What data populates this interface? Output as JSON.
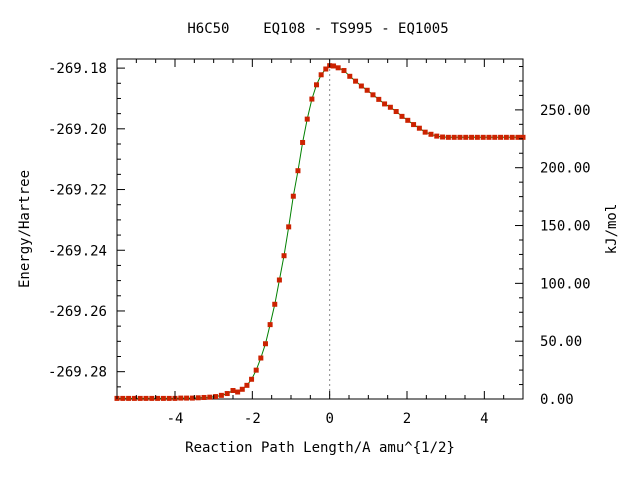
{
  "chart_data": {
    "type": "line",
    "title": "H6C50    EQ108 - TS995 - EQ1005",
    "xlabel": "Reaction Path Length/A amu^{1/2}",
    "ylabel": "Energy/Hartree",
    "y2label": "kJ/mol",
    "xlim": [
      -5.5,
      5.0
    ],
    "ylim": [
      -269.289,
      -269.177
    ],
    "y2lim": [
      0,
      294
    ],
    "x_ticks": [
      -4,
      -2,
      0,
      2,
      4
    ],
    "x_tick_labels": [
      "-4",
      "-2",
      "0",
      "2",
      "4"
    ],
    "y_ticks": [
      -269.18,
      -269.2,
      -269.22,
      -269.24,
      -269.26,
      -269.28
    ],
    "y_tick_labels": [
      "-269.18",
      "-269.20",
      "-269.22",
      "-269.24",
      "-269.26",
      "-269.28"
    ],
    "y2_ticks": [
      0,
      50,
      100,
      150,
      200,
      250
    ],
    "y2_tick_labels": [
      "0.00",
      "50.00",
      "100.00",
      "150.00",
      "200.00",
      "250.00"
    ],
    "ts_marker_x": 0,
    "grid": false,
    "line_color": "#008000",
    "marker_color": "#cc2200",
    "ts_line_color": "#888888",
    "series": [
      {
        "x": [
          -5.5,
          -5.35,
          -5.2,
          -5.05,
          -4.9,
          -4.75,
          -4.6,
          -4.45,
          -4.3,
          -4.15,
          -4.0,
          -3.85,
          -3.7,
          -3.55,
          -3.4,
          -3.25,
          -3.1,
          -2.95,
          -2.8,
          -2.65,
          -2.5,
          -2.38,
          -2.26,
          -2.14,
          -2.02,
          -1.9,
          -1.78,
          -1.66,
          -1.54,
          -1.42,
          -1.3,
          -1.18,
          -1.06,
          -0.94,
          -0.82,
          -0.7,
          -0.58,
          -0.46,
          -0.34,
          -0.22,
          -0.1,
          0.0,
          0.1,
          0.22,
          0.37,
          0.52,
          0.67,
          0.82,
          0.97,
          1.12,
          1.27,
          1.42,
          1.57,
          1.72,
          1.87,
          2.02,
          2.17,
          2.32,
          2.47,
          2.62,
          2.77,
          2.92,
          3.07,
          3.22,
          3.37,
          3.52,
          3.67,
          3.82,
          3.97,
          4.12,
          4.27,
          4.42,
          4.57,
          4.72,
          4.87,
          5.0
        ],
        "y": [
          -269.2888,
          -269.2888,
          -269.2888,
          -269.2888,
          -269.2888,
          -269.2888,
          -269.2888,
          -269.2888,
          -269.2888,
          -269.2888,
          -269.2888,
          -269.2887,
          -269.2887,
          -269.2887,
          -269.2886,
          -269.2885,
          -269.2884,
          -269.2882,
          -269.2878,
          -269.2872,
          -269.2862,
          -269.2867,
          -269.2858,
          -269.2845,
          -269.2825,
          -269.2795,
          -269.2755,
          -269.2708,
          -269.2645,
          -269.2578,
          -269.2498,
          -269.2418,
          -269.2323,
          -269.2222,
          -269.2138,
          -269.2045,
          -269.1968,
          -269.1902,
          -269.1855,
          -269.1822,
          -269.1803,
          -269.1792,
          -269.1793,
          -269.1799,
          -269.1808,
          -269.1827,
          -269.1843,
          -269.1859,
          -269.1873,
          -269.1888,
          -269.1903,
          -269.1918,
          -269.1929,
          -269.1943,
          -269.1959,
          -269.1972,
          -269.1986,
          -269.1998,
          -269.2011,
          -269.2018,
          -269.2024,
          -269.2027,
          -269.2028,
          -269.2028,
          -269.2028,
          -269.2028,
          -269.2028,
          -269.2028,
          -269.2028,
          -269.2028,
          -269.2028,
          -269.2028,
          -269.2028,
          -269.2028,
          -269.2028,
          -269.2028
        ]
      }
    ]
  }
}
